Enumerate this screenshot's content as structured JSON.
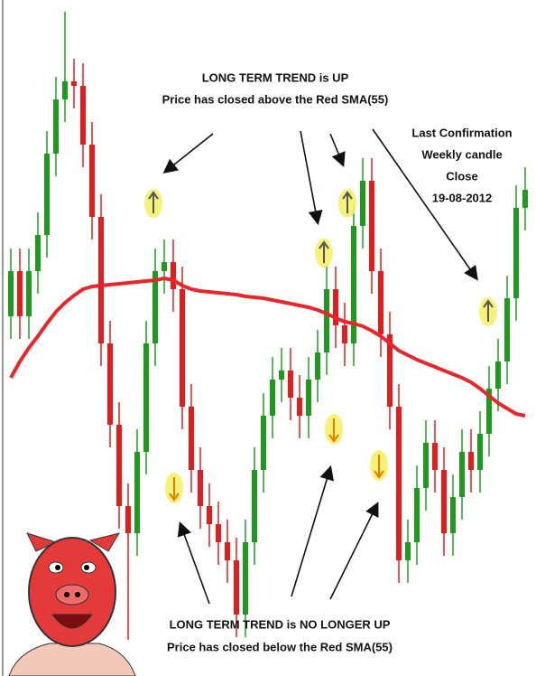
{
  "chart_data": {
    "type": "candlestick",
    "ylim": [
      0,
      748
    ],
    "up_color": "#1f9a1f",
    "down_color": "#e51c1c",
    "open": [
      398,
      448,
      398,
      448,
      488,
      578,
      638,
      658,
      653,
      588,
      508,
      368,
      278,
      188,
      158,
      248,
      368,
      448,
      458,
      428,
      298,
      228,
      188,
      168,
      148,
      128,
      68,
      148,
      228,
      288,
      328,
      338,
      308,
      288,
      328,
      358,
      428,
      388,
      368,
      498,
      548,
      448,
      378,
      298,
      128,
      148,
      208,
      258,
      228,
      158,
      198,
      248,
      228,
      268,
      318,
      348,
      418,
      518
    ],
    "high": [
      473,
      473,
      473,
      513,
      603,
      663,
      735,
      683,
      678,
      613,
      533,
      393,
      303,
      213,
      273,
      393,
      473,
      483,
      483,
      453,
      323,
      253,
      213,
      193,
      173,
      153,
      173,
      253,
      313,
      353,
      363,
      363,
      333,
      353,
      383,
      453,
      453,
      413,
      523,
      573,
      573,
      473,
      403,
      323,
      173,
      233,
      283,
      283,
      253,
      223,
      273,
      273,
      293,
      343,
      373,
      443,
      543,
      563
    ],
    "low": [
      373,
      373,
      373,
      423,
      463,
      553,
      613,
      628,
      563,
      483,
      343,
      253,
      163,
      40,
      133,
      223,
      343,
      423,
      403,
      273,
      203,
      163,
      143,
      123,
      103,
      43,
      43,
      123,
      203,
      263,
      303,
      283,
      263,
      263,
      303,
      333,
      363,
      343,
      343,
      473,
      423,
      353,
      273,
      103,
      103,
      123,
      183,
      203,
      133,
      133,
      173,
      203,
      203,
      243,
      293,
      323,
      393,
      493
    ],
    "close": [
      448,
      398,
      448,
      488,
      578,
      638,
      658,
      653,
      588,
      508,
      368,
      278,
      188,
      158,
      248,
      368,
      448,
      458,
      428,
      298,
      228,
      188,
      168,
      148,
      128,
      68,
      148,
      228,
      288,
      328,
      338,
      308,
      288,
      328,
      358,
      428,
      388,
      368,
      498,
      548,
      448,
      378,
      298,
      128,
      148,
      208,
      258,
      228,
      158,
      198,
      248,
      228,
      268,
      318,
      348,
      418,
      518,
      538
    ],
    "sma": {
      "color": "#e8262b",
      "values": [
        330,
        348,
        363,
        376,
        390,
        403,
        413,
        421,
        428,
        431,
        432,
        433,
        434,
        435,
        436,
        437,
        438,
        440,
        438,
        432,
        428,
        426,
        425,
        424,
        423,
        422,
        420,
        419,
        418,
        416,
        414,
        412,
        410,
        408,
        405,
        401,
        396,
        392,
        390,
        387,
        382,
        376,
        368,
        360,
        355,
        350,
        346,
        342,
        338,
        334,
        330,
        325,
        318,
        310,
        302,
        296,
        290,
        288
      ]
    },
    "annotations": {
      "up_title": "LONG TERM TREND is UP",
      "up_text": "Price has closed above the Red SMA(55)",
      "confirm_1": "Last Confirmation",
      "confirm_2": "Weekly candle",
      "confirm_3": "Close",
      "confirm_4": "19-08-2012",
      "down_title": "LONG TERM TREND is NO LONGER UP",
      "down_text": "Price has closed below the Red SMA(55)"
    }
  }
}
